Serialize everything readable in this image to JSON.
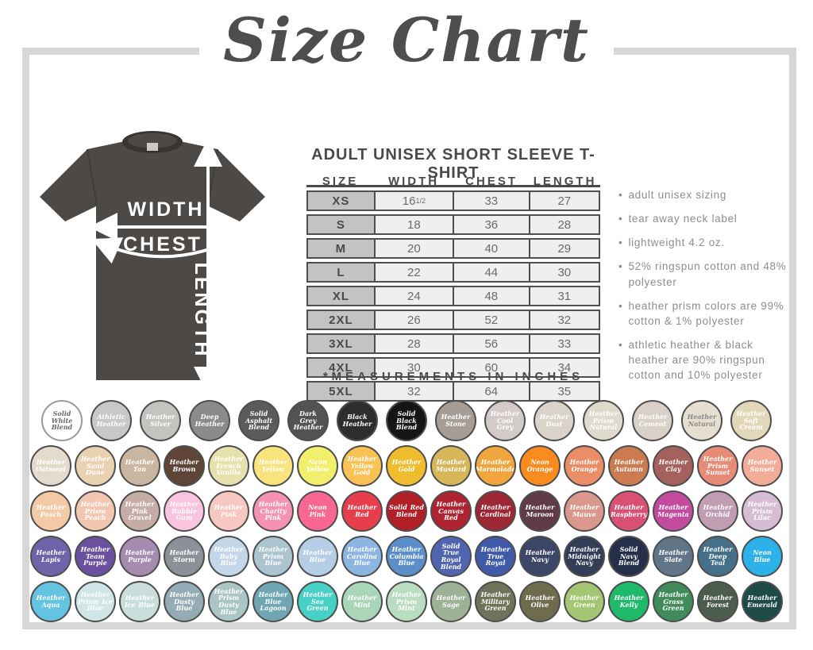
{
  "title": "Size Chart",
  "product_heading": "ADULT UNISEX SHORT SLEEVE T-SHIRT",
  "diagram": {
    "width_label": "WIDTH",
    "chest_label": "CHEST",
    "length_label": "LENGTH",
    "shirt_color": "#4d4947"
  },
  "size_table": {
    "columns": [
      "SIZE",
      "WIDTH",
      "CHEST",
      "LENGTH"
    ],
    "rows": [
      {
        "size": "XS",
        "width": "16½",
        "chest": "33",
        "length": "27"
      },
      {
        "size": "S",
        "width": "18",
        "chest": "36",
        "length": "28"
      },
      {
        "size": "M",
        "width": "20",
        "chest": "40",
        "length": "29"
      },
      {
        "size": "L",
        "width": "22",
        "chest": "44",
        "length": "30"
      },
      {
        "size": "XL",
        "width": "24",
        "chest": "48",
        "length": "31"
      },
      {
        "size": "2XL",
        "width": "26",
        "chest": "52",
        "length": "32"
      },
      {
        "size": "3XL",
        "width": "28",
        "chest": "56",
        "length": "33"
      },
      {
        "size": "4XL",
        "width": "30",
        "chest": "60",
        "length": "34"
      },
      {
        "size": "5XL",
        "width": "32",
        "chest": "64",
        "length": "35"
      }
    ],
    "footnote": "*MEASUREMENTS IN INCHES"
  },
  "features": [
    "adult unisex sizing",
    "tear away neck label",
    "lightweight 4.2 oz.",
    "52% ringspun cotton and 48% polyester",
    "heather prism colors are 99% cotton & 1% polyester",
    "athletic heather & black heather are 90% ringspun cotton and 10% polyester"
  ],
  "color_swatches": {
    "rows": [
      [
        {
          "name": "Solid White Blend",
          "color": "#ffffff",
          "text": "#6a6a6a",
          "border": "#9a9a9a"
        },
        {
          "name": "Athletic Heather",
          "color": "#c8c8c8"
        },
        {
          "name": "Heather Silver",
          "color": "#c5c3bf"
        },
        {
          "name": "Deep Heather",
          "color": "#8b8b8b"
        },
        {
          "name": "Solid Asphalt Blend",
          "color": "#5b5b5d"
        },
        {
          "name": "Dark Grey Heather",
          "color": "#555351"
        },
        {
          "name": "Black Heather",
          "color": "#2d2d2d"
        },
        {
          "name": "Solid Black Blend",
          "color": "#151515"
        },
        {
          "name": "Heather Stone",
          "color": "#a79d97"
        },
        {
          "name": "Heather Cool Grey",
          "color": "#d2cbc9"
        },
        {
          "name": "Heather Dust",
          "color": "#d9d3c9"
        },
        {
          "name": "Heather Prism Natural",
          "color": "#dedacd"
        },
        {
          "name": "Heather Cement",
          "color": "#d9d1c7"
        },
        {
          "name": "Heather Natural",
          "color": "#e5dfd2",
          "text": "#8a8a8a"
        },
        {
          "name": "Heather Soft Cream",
          "color": "#e2d7b9"
        }
      ],
      [
        {
          "name": "Heather Oatmeal",
          "color": "#e4dbcd"
        },
        {
          "name": "Heather Sand Dune",
          "color": "#ead2b0"
        },
        {
          "name": "Heather Tan",
          "color": "#cab6a0"
        },
        {
          "name": "Heather Brown",
          "color": "#5e4537"
        },
        {
          "name": "Heather French Vanilla",
          "color": "#e7e1ad"
        },
        {
          "name": "Heather Yellow",
          "color": "#f8e37c"
        },
        {
          "name": "Neon Yellow",
          "color": "#f1ef6c"
        },
        {
          "name": "Heather Yellow Gold",
          "color": "#f8c254"
        },
        {
          "name": "Heather Gold",
          "color": "#eebc2c"
        },
        {
          "name": "Heather Mustard",
          "color": "#d5b659"
        },
        {
          "name": "Heather Marmalade",
          "color": "#f1a63d"
        },
        {
          "name": "Neon Orange",
          "color": "#f98b1f"
        },
        {
          "name": "Heather Orange",
          "color": "#e98e67"
        },
        {
          "name": "Heather Autumn",
          "color": "#ca7b4f"
        },
        {
          "name": "Heather Clay",
          "color": "#a4615d"
        },
        {
          "name": "Heather Prism Sunset",
          "color": "#e68b75"
        },
        {
          "name": "Heather Sunset",
          "color": "#f3ac98"
        }
      ],
      [
        {
          "name": "Heather Peach",
          "color": "#f4c9a5"
        },
        {
          "name": "Heather Prism Peach",
          "color": "#f1c7af"
        },
        {
          "name": "Heather Pink Gravel",
          "color": "#c5aca5"
        },
        {
          "name": "Heather Bubble Gum",
          "color": "#fac4de"
        },
        {
          "name": "Heather Pink",
          "color": "#f7c7c1"
        },
        {
          "name": "Heather Charity Pink",
          "color": "#f592b3"
        },
        {
          "name": "Neon Pink",
          "color": "#f86791"
        },
        {
          "name": "Heather Red",
          "color": "#e73e4e"
        },
        {
          "name": "Solid Red Blend",
          "color": "#b12027"
        },
        {
          "name": "Heather Canvas Red",
          "color": "#ae2531"
        },
        {
          "name": "Heather Cardinal",
          "color": "#9d2734"
        },
        {
          "name": "Heather Maroon",
          "color": "#603b45"
        },
        {
          "name": "Heather Mauve",
          "color": "#da988d"
        },
        {
          "name": "Heather Raspberry",
          "color": "#da5073"
        },
        {
          "name": "Heather Magenta",
          "color": "#c34b9f"
        },
        {
          "name": "Heather Orchid",
          "color": "#c19db1"
        },
        {
          "name": "Heather Prism Lilac",
          "color": "#d6bdd3"
        }
      ],
      [
        {
          "name": "Heather Lapis",
          "color": "#6d64a9"
        },
        {
          "name": "Heather Team Purple",
          "color": "#6b509f"
        },
        {
          "name": "Heather Purple",
          "color": "#a68bb1"
        },
        {
          "name": "Heather Storm",
          "color": "#8d9097"
        },
        {
          "name": "Heather Baby Blue",
          "color": "#c4d6e9"
        },
        {
          "name": "Heather Prism Blue",
          "color": "#aac4d0"
        },
        {
          "name": "Heather Blue",
          "color": "#b6cee5"
        },
        {
          "name": "Heather Carolina Blue",
          "color": "#8db5e1"
        },
        {
          "name": "Heather Columbia Blue",
          "color": "#5c8fc9"
        },
        {
          "name": "Solid True Royal Blend",
          "color": "#5064af"
        },
        {
          "name": "Heather True Royal",
          "color": "#4059a9"
        },
        {
          "name": "Heather Navy",
          "color": "#3c4667"
        },
        {
          "name": "Heather Midnight Navy",
          "color": "#333d57"
        },
        {
          "name": "Solid Navy Blend",
          "color": "#262f49"
        },
        {
          "name": "Heather Slate",
          "color": "#607587"
        },
        {
          "name": "Heather Deep Teal",
          "color": "#467089"
        },
        {
          "name": "Neon Blue",
          "color": "#2db1e9"
        }
      ],
      [
        {
          "name": "Heather Aqua",
          "color": "#63c3e1"
        },
        {
          "name": "Heather Prism Ice Blue",
          "color": "#d0e5e5"
        },
        {
          "name": "Heather Ice Blue",
          "color": "#c9dddb"
        },
        {
          "name": "Heather Dusty Blue",
          "color": "#94acb5"
        },
        {
          "name": "Heather Prism Dusty Blue",
          "color": "#aac5c3"
        },
        {
          "name": "Heather Blue Lagoon",
          "color": "#70a6b3"
        },
        {
          "name": "Heather Sea Green",
          "color": "#47d0c5"
        },
        {
          "name": "Heather Mint",
          "color": "#a9d5b9"
        },
        {
          "name": "Heather Prism Mint",
          "color": "#b9ddc1"
        },
        {
          "name": "Heather Sage",
          "color": "#9db197"
        },
        {
          "name": "Heather Military Green",
          "color": "#707359"
        },
        {
          "name": "Heather Olive",
          "color": "#6f6b4f"
        },
        {
          "name": "Heather Green",
          "color": "#a4c673"
        },
        {
          "name": "Heather Kelly",
          "color": "#1eb969"
        },
        {
          "name": "Heather Grass Green",
          "color": "#408b59"
        },
        {
          "name": "Heather Forest",
          "color": "#4d5d4d"
        },
        {
          "name": "Heather Emerald",
          "color": "#1e4b45"
        }
      ]
    ]
  }
}
